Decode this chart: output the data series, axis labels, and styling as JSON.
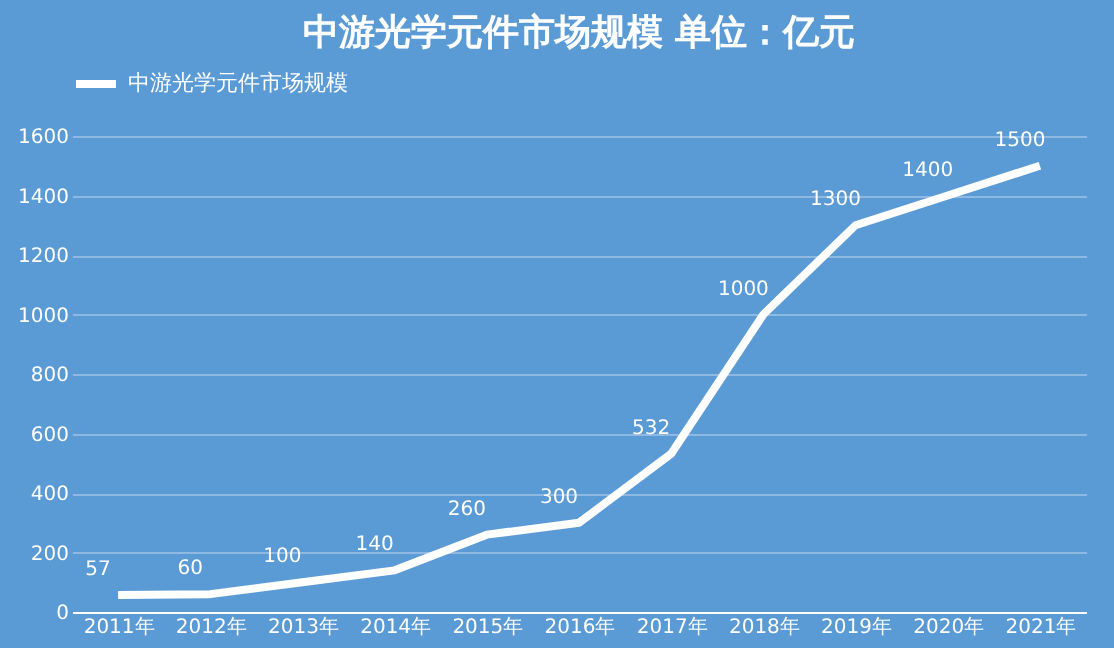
{
  "chart_data": {
    "type": "line",
    "title": "中游光学元件市场规模   单位：亿元",
    "categories": [
      "2011年",
      "2012年",
      "2013年",
      "2014年",
      "2015年",
      "2016年",
      "2017年",
      "2018年",
      "2019年",
      "2020年",
      "2021年"
    ],
    "series": [
      {
        "name": "中游光学元件市场规模",
        "color": "#ffffff",
        "values": [
          57,
          60,
          100,
          140,
          260,
          300,
          532,
          1000,
          1300,
          1400,
          1500
        ]
      }
    ],
    "ylim": [
      0,
      1600
    ],
    "yticks": [
      0,
      200,
      400,
      600,
      800,
      1000,
      1200,
      1400,
      1600
    ],
    "grid": "y",
    "legend": "top",
    "data_labels": true,
    "marker": "none",
    "line_style": "solid"
  }
}
